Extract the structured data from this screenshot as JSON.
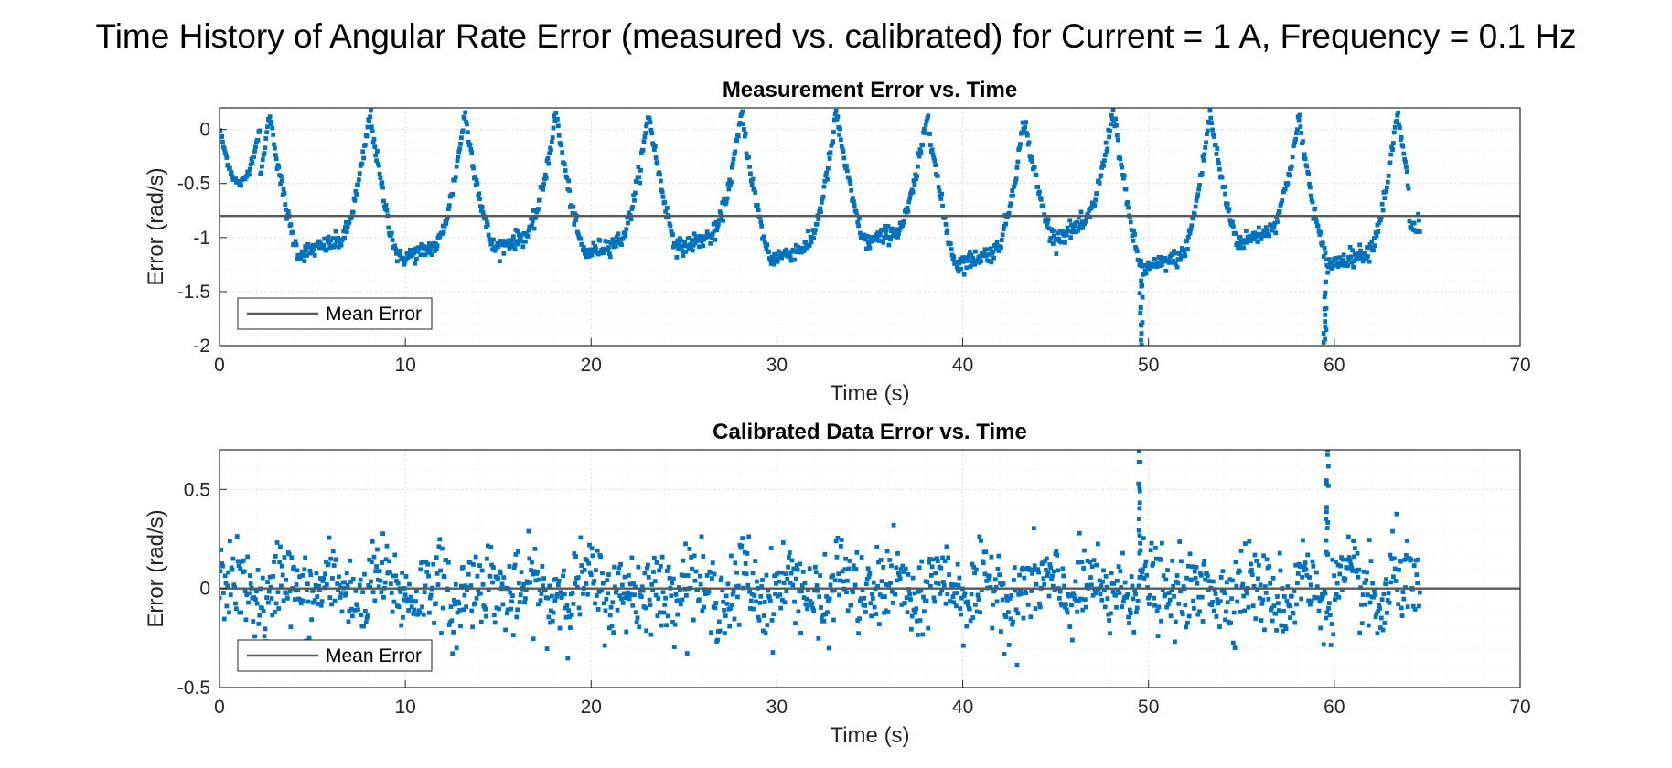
{
  "figure": {
    "title": "Time History of Angular Rate Error (measured vs. calibrated) for Current = 1 A, Frequency = 0.1 Hz"
  },
  "chart_data": [
    {
      "type": "scatter",
      "title": "Measurement Error vs. Time",
      "xlabel": "Time (s)",
      "ylabel": "Error (rad/s)",
      "xlim": [
        0,
        70
      ],
      "ylim": [
        -2,
        0.2
      ],
      "xticks": [
        0,
        10,
        20,
        30,
        40,
        50,
        60,
        70
      ],
      "xtick_labels": [
        "0",
        "10",
        "20",
        "30",
        "40",
        "50",
        "60",
        "70"
      ],
      "yticks": [
        -2,
        -1.5,
        -1,
        -0.5,
        0
      ],
      "ytick_labels": [
        "-2",
        "-1.5",
        "-1",
        "-0.5",
        "0"
      ],
      "grid": true,
      "minor_grid": true,
      "legend": {
        "position": "bottom-left",
        "entries": [
          "Mean Error"
        ]
      },
      "mean_error": -0.8,
      "series_color": "#0072BD",
      "mean_color": "#595959",
      "period": 5,
      "duration": 64.6,
      "peak_times": [
        2.7,
        8.1,
        13.2,
        18.1,
        23.1,
        28.1,
        33.2,
        38.1,
        43.3,
        48.1,
        53.3,
        58.1,
        63.4
      ],
      "peak_values": [
        0.15,
        0.15,
        0.15,
        0.15,
        0.15,
        0.15,
        0.15,
        0.15,
        0.1,
        0.2,
        0.15,
        0.1,
        0.15
      ],
      "trough_values": [
        -1.15,
        -1.2,
        -1.1,
        -1.15,
        -1.1,
        -1.2,
        -1.05,
        -1.25,
        -1.0,
        -1.3,
        -1.05,
        -1.25
      ],
      "spikes": [
        {
          "x": 49.6,
          "y": -2.0
        },
        {
          "x": 59.5,
          "y": -2.0
        }
      ]
    },
    {
      "type": "scatter",
      "title": "Calibrated Data Error vs. Time",
      "xlabel": "Time (s)",
      "ylabel": "Error (rad/s)",
      "xlim": [
        0,
        70
      ],
      "ylim": [
        -0.5,
        0.7
      ],
      "xticks": [
        0,
        10,
        20,
        30,
        40,
        50,
        60,
        70
      ],
      "xtick_labels": [
        "0",
        "10",
        "20",
        "30",
        "40",
        "50",
        "60",
        "70"
      ],
      "yticks": [
        -0.5,
        0,
        0.5
      ],
      "ytick_labels": [
        "-0.5",
        "0",
        "0.5"
      ],
      "grid": true,
      "minor_grid": true,
      "legend": {
        "position": "bottom-left",
        "entries": [
          "Mean Error"
        ]
      },
      "mean_error": 0.0,
      "series_color": "#0072BD",
      "mean_color": "#595959",
      "duration": 64.6,
      "noise_amplitude": 0.1,
      "spikes": [
        {
          "x": 49.5,
          "y": 0.68
        },
        {
          "x": 59.6,
          "y": 0.7
        }
      ]
    }
  ]
}
